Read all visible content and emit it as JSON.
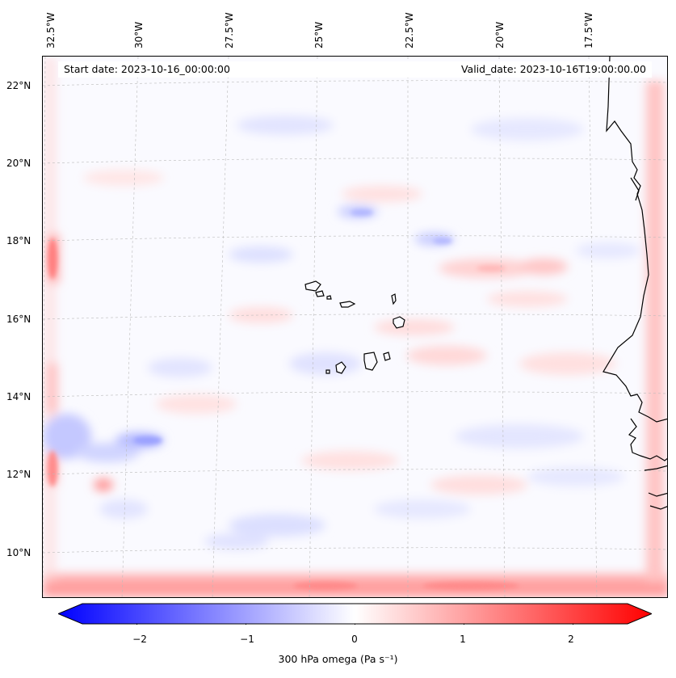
{
  "map": {
    "start_date": "Start date: 2023-10-16_00:00:00",
    "valid_date": "Valid_date: 2023-10-16T19:00:00.00",
    "longitude_labels": [
      "32.5°W",
      "30°W",
      "27.5°W",
      "25°W",
      "22.5°W",
      "20°W",
      "17.5°W"
    ],
    "latitude_labels": [
      "22°N",
      "20°N",
      "18°N",
      "16°N",
      "14°N",
      "12°N",
      "10°N"
    ],
    "field": "300 hPa omega",
    "extent": {
      "lon_min": -32.7,
      "lon_max": -15.3,
      "lat_min": 8.8,
      "lat_max": 22.8
    }
  },
  "colorbar": {
    "label": "300 hPa omega (Pa s⁻¹)",
    "ticks": [
      "−2",
      "−1",
      "0",
      "1",
      "2"
    ],
    "tick_values": [
      -2,
      -1,
      0,
      1,
      2
    ],
    "range": [
      -2.5,
      2.5
    ],
    "colormap": "bwr",
    "extend": "both"
  },
  "colors": {
    "negative": "#0000ff",
    "zero": "#ffffff",
    "positive": "#ff0000",
    "coastline": "#000000"
  }
}
